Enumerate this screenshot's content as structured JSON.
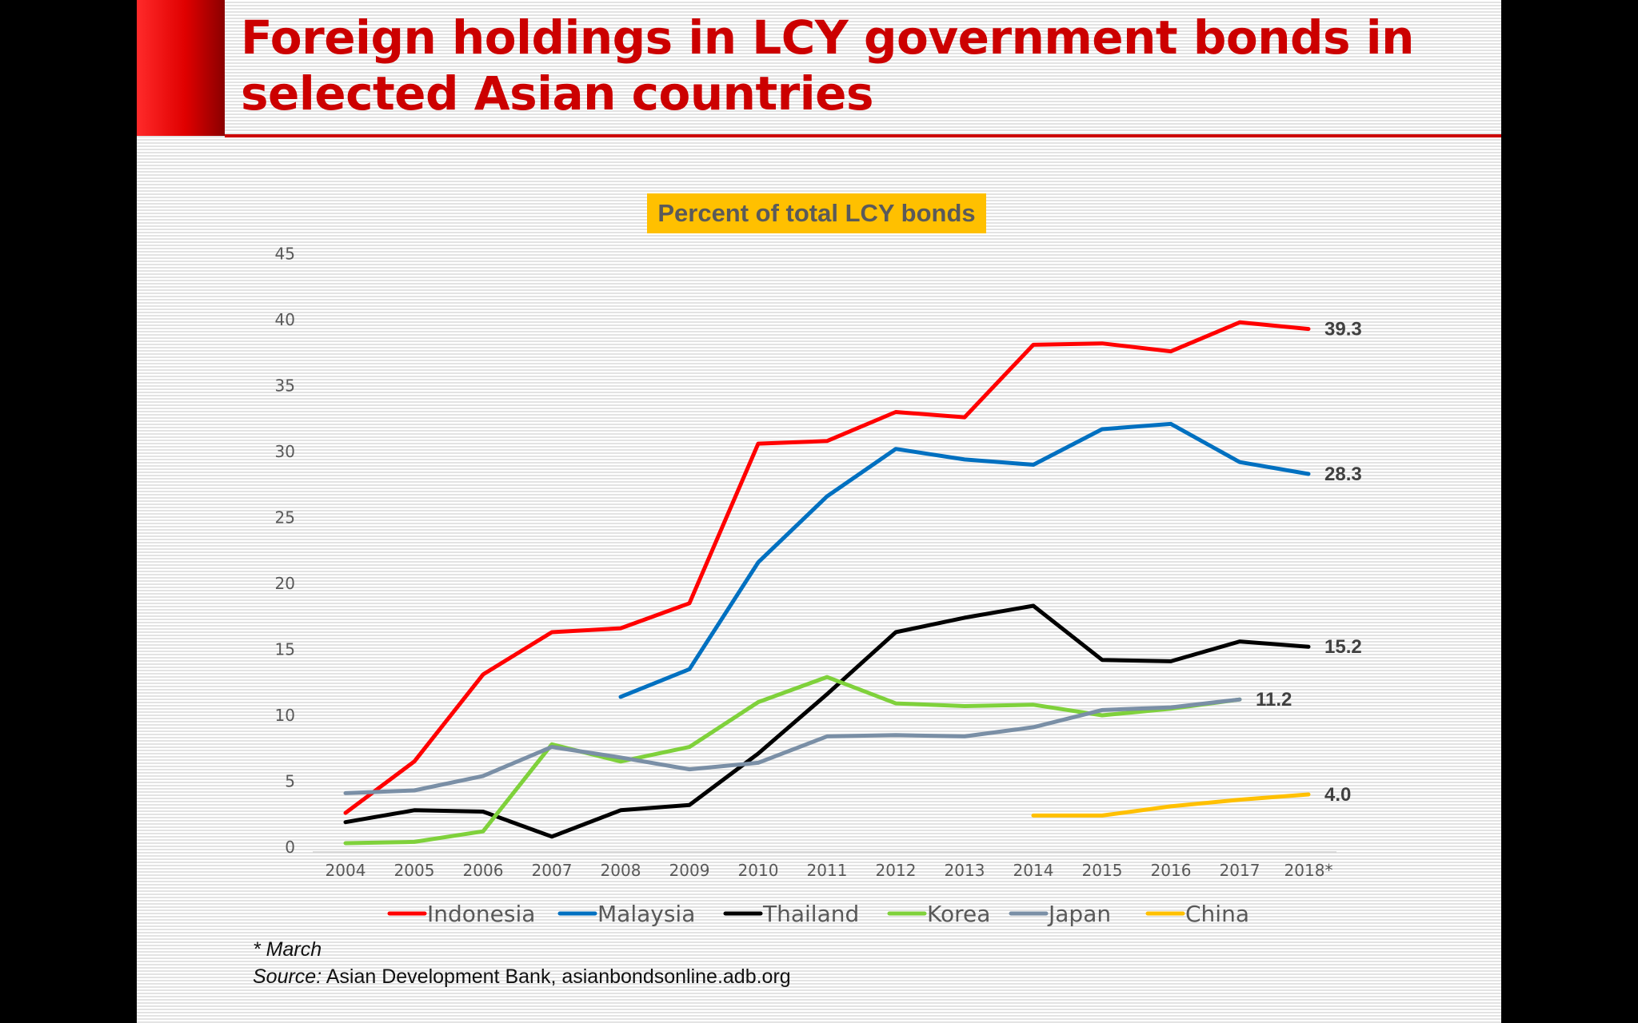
{
  "title": "Foreign holdings in LCY government bonds in selected Asian countries",
  "footnote": "* March",
  "source_label": "Source:",
  "source_text": " Asian Development Bank, asianbondsonline.adb.org",
  "chart_data": {
    "type": "line",
    "title": "Percent of total LCY bonds",
    "title_bg_color": "#ffc000",
    "xlabel": "",
    "ylabel": "",
    "ylim": [
      0,
      45
    ],
    "yticks": [
      0,
      5,
      10,
      15,
      20,
      25,
      30,
      35,
      40,
      45
    ],
    "categories": [
      "2004",
      "2005",
      "2006",
      "2007",
      "2008",
      "2009",
      "2010",
      "2011",
      "2012",
      "2013",
      "2014",
      "2015",
      "2016",
      "2017",
      "2018*"
    ],
    "legend_position": "bottom",
    "series": [
      {
        "name": "Indonesia",
        "color": "#ff0000",
        "values": [
          2.6,
          6.5,
          13.1,
          16.3,
          16.6,
          18.5,
          30.6,
          30.8,
          33.0,
          32.6,
          38.1,
          38.2,
          37.6,
          39.8,
          39.3
        ],
        "end_label": "39.3"
      },
      {
        "name": "Malaysia",
        "color": "#0070c0",
        "values": [
          null,
          null,
          null,
          null,
          11.4,
          13.5,
          21.6,
          26.6,
          30.2,
          29.4,
          29.0,
          31.7,
          32.1,
          29.2,
          28.3
        ],
        "end_label": "28.3"
      },
      {
        "name": "Thailand",
        "color": "#000000",
        "values": [
          1.9,
          2.8,
          2.7,
          0.8,
          2.8,
          3.2,
          7.1,
          11.6,
          16.3,
          17.4,
          18.3,
          14.2,
          14.1,
          15.6,
          15.2
        ],
        "end_label": "15.2"
      },
      {
        "name": "Korea",
        "color": "#7fd13b",
        "values": [
          0.3,
          0.4,
          1.2,
          7.8,
          6.5,
          7.6,
          11.0,
          12.9,
          10.9,
          10.7,
          10.8,
          10.0,
          10.5,
          11.2,
          null
        ],
        "end_label": ""
      },
      {
        "name": "Japan",
        "color": "#7a8fa6",
        "values": [
          4.1,
          4.3,
          5.4,
          7.6,
          6.8,
          5.9,
          6.4,
          8.4,
          8.5,
          8.4,
          9.1,
          10.4,
          10.6,
          11.2,
          null
        ],
        "end_label": "11.2"
      },
      {
        "name": "China",
        "color": "#ffc000",
        "values": [
          null,
          null,
          null,
          null,
          null,
          null,
          null,
          null,
          null,
          null,
          2.4,
          2.4,
          3.1,
          3.6,
          4.0
        ],
        "end_label": "4.0"
      }
    ]
  }
}
